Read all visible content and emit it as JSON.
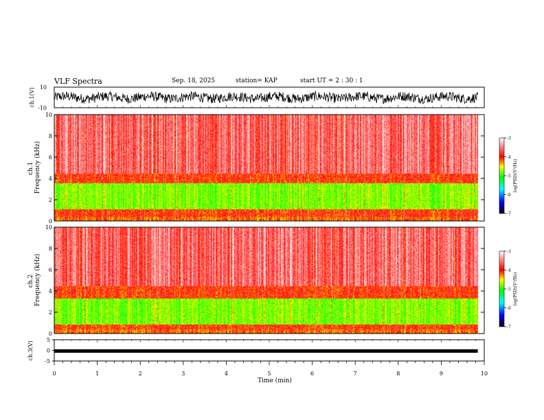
{
  "header": {
    "title": "VLF Spectra",
    "date": "Sep. 18, 2025",
    "station": "station= KAP",
    "start": "start UT = 2 : 30 : 1"
  },
  "colors": {
    "axes": "#000000",
    "background": "#ffffff",
    "colormap": [
      "#000000",
      "#0000ff",
      "#00ffff",
      "#00ff00",
      "#ffff00",
      "#ff0000",
      "#ffffff"
    ]
  },
  "chart_data": [
    {
      "id": "ch1-waveform",
      "type": "line",
      "ylabel": "ch.1(V)",
      "ylim": [
        -10,
        10
      ],
      "yticks": [
        "10",
        "-10"
      ],
      "xlim": [
        0,
        10
      ],
      "x_extent_min": 9.85,
      "series": [
        {
          "name": "ch.1 signal",
          "amplitude_rms": 3.0,
          "offset": 0
        }
      ]
    },
    {
      "id": "ch1-spectrogram",
      "type": "heatmap",
      "ylabel": "ch.1\nFrequency (kHz)",
      "ylim": [
        0,
        10
      ],
      "yticks": [
        "0",
        "2",
        "4",
        "6",
        "8",
        "10"
      ],
      "xlim": [
        0,
        10
      ],
      "x_extent_min": 9.85,
      "quiet_band_khz": [
        1.1,
        3.6
      ],
      "colorbar": {
        "label": "log(PSD)(V²/Hz)",
        "ticks": [
          "-3",
          "-4",
          "-5",
          "-6",
          "-7"
        ],
        "range": [
          -7,
          -3
        ]
      }
    },
    {
      "id": "ch2-spectrogram",
      "type": "heatmap",
      "ylabel": "ch.2\nFrequency (kHz)",
      "ylim": [
        0,
        10
      ],
      "yticks": [
        "0",
        "2",
        "4",
        "6",
        "8",
        "10"
      ],
      "xlim": [
        0,
        10
      ],
      "x_extent_min": 9.85,
      "quiet_band_khz": [
        0.9,
        3.3
      ],
      "colorbar": {
        "label": "log(PSD)(V²/Hz)",
        "ticks": [
          "-3",
          "-4",
          "-5",
          "-6",
          "-7"
        ],
        "range": [
          -7,
          -3
        ]
      }
    },
    {
      "id": "ch3-waveform",
      "type": "line",
      "ylabel": "ch.3(V)",
      "ylim": [
        -5,
        5
      ],
      "yticks": [
        "5",
        "0",
        "-5"
      ],
      "xlim": [
        0,
        10
      ],
      "xlabel": "Time (min)",
      "xticks": [
        "0",
        "1",
        "2",
        "3",
        "4",
        "5",
        "6",
        "7",
        "8",
        "9",
        "10"
      ],
      "x_extent_min": 9.85,
      "series": [
        {
          "name": "ch.3 signal",
          "level": 0,
          "thickness": 0.6
        }
      ]
    }
  ]
}
